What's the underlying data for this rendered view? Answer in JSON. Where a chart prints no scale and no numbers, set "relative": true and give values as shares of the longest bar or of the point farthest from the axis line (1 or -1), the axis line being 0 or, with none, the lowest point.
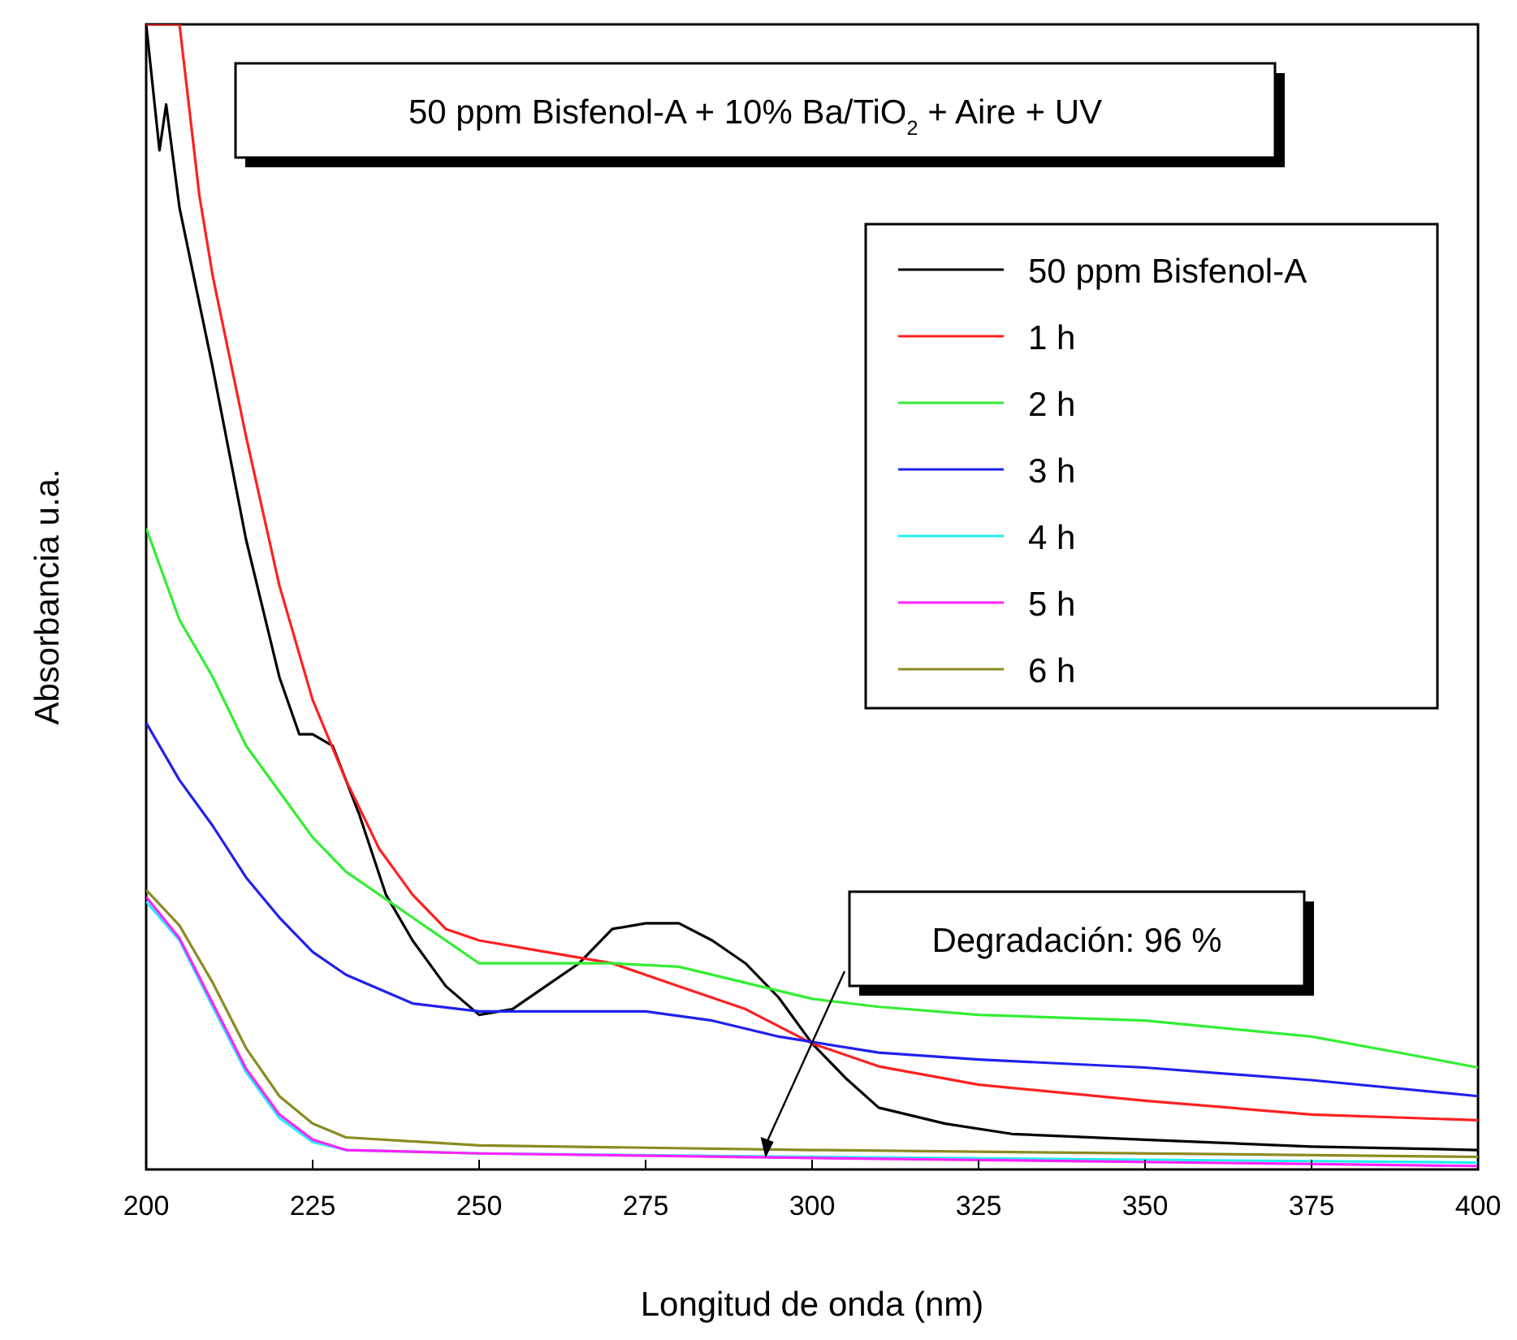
{
  "chart_data": {
    "type": "line",
    "title": "50 ppm Bisfenol-A + 10% Ba/TiO$_{2}$ + Aire + UV",
    "xlabel": "Longitud de onda (nm)",
    "ylabel": "Absorbancia u.a.",
    "relative": true,
    "xlim": [
      200,
      400
    ],
    "xticks": [
      200,
      225,
      250,
      275,
      300,
      325,
      350,
      375,
      400
    ],
    "tick_labels": "x",
    "grid": false,
    "legend": "top right",
    "marker": "none",
    "line_style": "solid",
    "annotations": [
      "Degradación: 96 %"
    ],
    "series": [
      {
        "name": "50 ppm Bisfenol-A",
        "color": "#000000",
        "x": [
          200,
          202,
          203,
          205,
          210,
          215,
          220,
          223,
          225,
          228,
          232,
          236,
          240,
          245,
          250,
          255,
          260,
          265,
          270,
          275,
          280,
          285,
          290,
          295,
          300,
          305,
          310,
          320,
          330,
          350,
          375,
          400
        ],
        "values": [
          1.0,
          0.89,
          0.93,
          0.84,
          0.7,
          0.55,
          0.43,
          0.38,
          0.38,
          0.37,
          0.31,
          0.24,
          0.2,
          0.16,
          0.135,
          0.14,
          0.16,
          0.18,
          0.21,
          0.215,
          0.215,
          0.2,
          0.18,
          0.15,
          0.11,
          0.08,
          0.054,
          0.04,
          0.031,
          0.026,
          0.02,
          0.017
        ]
      },
      {
        "name": "1 h",
        "color": "#ff2020",
        "x": [
          200,
          205,
          208,
          210,
          215,
          220,
          225,
          230,
          235,
          240,
          245,
          250,
          260,
          270,
          280,
          290,
          300,
          310,
          325,
          350,
          375,
          400
        ],
        "values": [
          1.0,
          1.0,
          0.85,
          0.78,
          0.64,
          0.51,
          0.41,
          0.34,
          0.28,
          0.24,
          0.21,
          0.2,
          0.19,
          0.18,
          0.16,
          0.14,
          0.11,
          0.09,
          0.074,
          0.06,
          0.048,
          0.043
        ]
      },
      {
        "name": "2 h",
        "color": "#33ee33",
        "x": [
          200,
          205,
          210,
          215,
          220,
          225,
          230,
          240,
          250,
          260,
          270,
          280,
          290,
          300,
          310,
          325,
          350,
          375,
          390,
          400
        ],
        "values": [
          0.56,
          0.48,
          0.43,
          0.37,
          0.33,
          0.29,
          0.26,
          0.22,
          0.18,
          0.18,
          0.18,
          0.177,
          0.163,
          0.149,
          0.142,
          0.135,
          0.13,
          0.116,
          0.1,
          0.089
        ]
      },
      {
        "name": "3 h",
        "color": "#2020ee",
        "x": [
          200,
          205,
          210,
          215,
          220,
          225,
          230,
          240,
          250,
          260,
          275,
          285,
          295,
          310,
          325,
          350,
          375,
          400
        ],
        "values": [
          0.39,
          0.34,
          0.3,
          0.255,
          0.22,
          0.19,
          0.17,
          0.145,
          0.138,
          0.138,
          0.138,
          0.13,
          0.116,
          0.102,
          0.096,
          0.089,
          0.078,
          0.064
        ]
      },
      {
        "name": "4 h",
        "color": "#22eeee",
        "x": [
          200,
          205,
          210,
          215,
          220,
          225,
          230,
          250,
          300,
          400
        ],
        "values": [
          0.234,
          0.2,
          0.142,
          0.085,
          0.045,
          0.024,
          0.017,
          0.014,
          0.011,
          0.006
        ]
      },
      {
        "name": "5 h",
        "color": "#ff22ff",
        "x": [
          200,
          205,
          210,
          215,
          220,
          225,
          230,
          250,
          300,
          400
        ],
        "values": [
          0.238,
          0.202,
          0.145,
          0.088,
          0.048,
          0.026,
          0.017,
          0.014,
          0.01,
          0.003
        ]
      },
      {
        "name": "6 h",
        "color": "#8b8b22",
        "x": [
          200,
          205,
          210,
          215,
          220,
          225,
          230,
          250,
          300,
          400
        ],
        "values": [
          0.244,
          0.213,
          0.163,
          0.106,
          0.064,
          0.04,
          0.028,
          0.021,
          0.017,
          0.011
        ]
      }
    ]
  }
}
